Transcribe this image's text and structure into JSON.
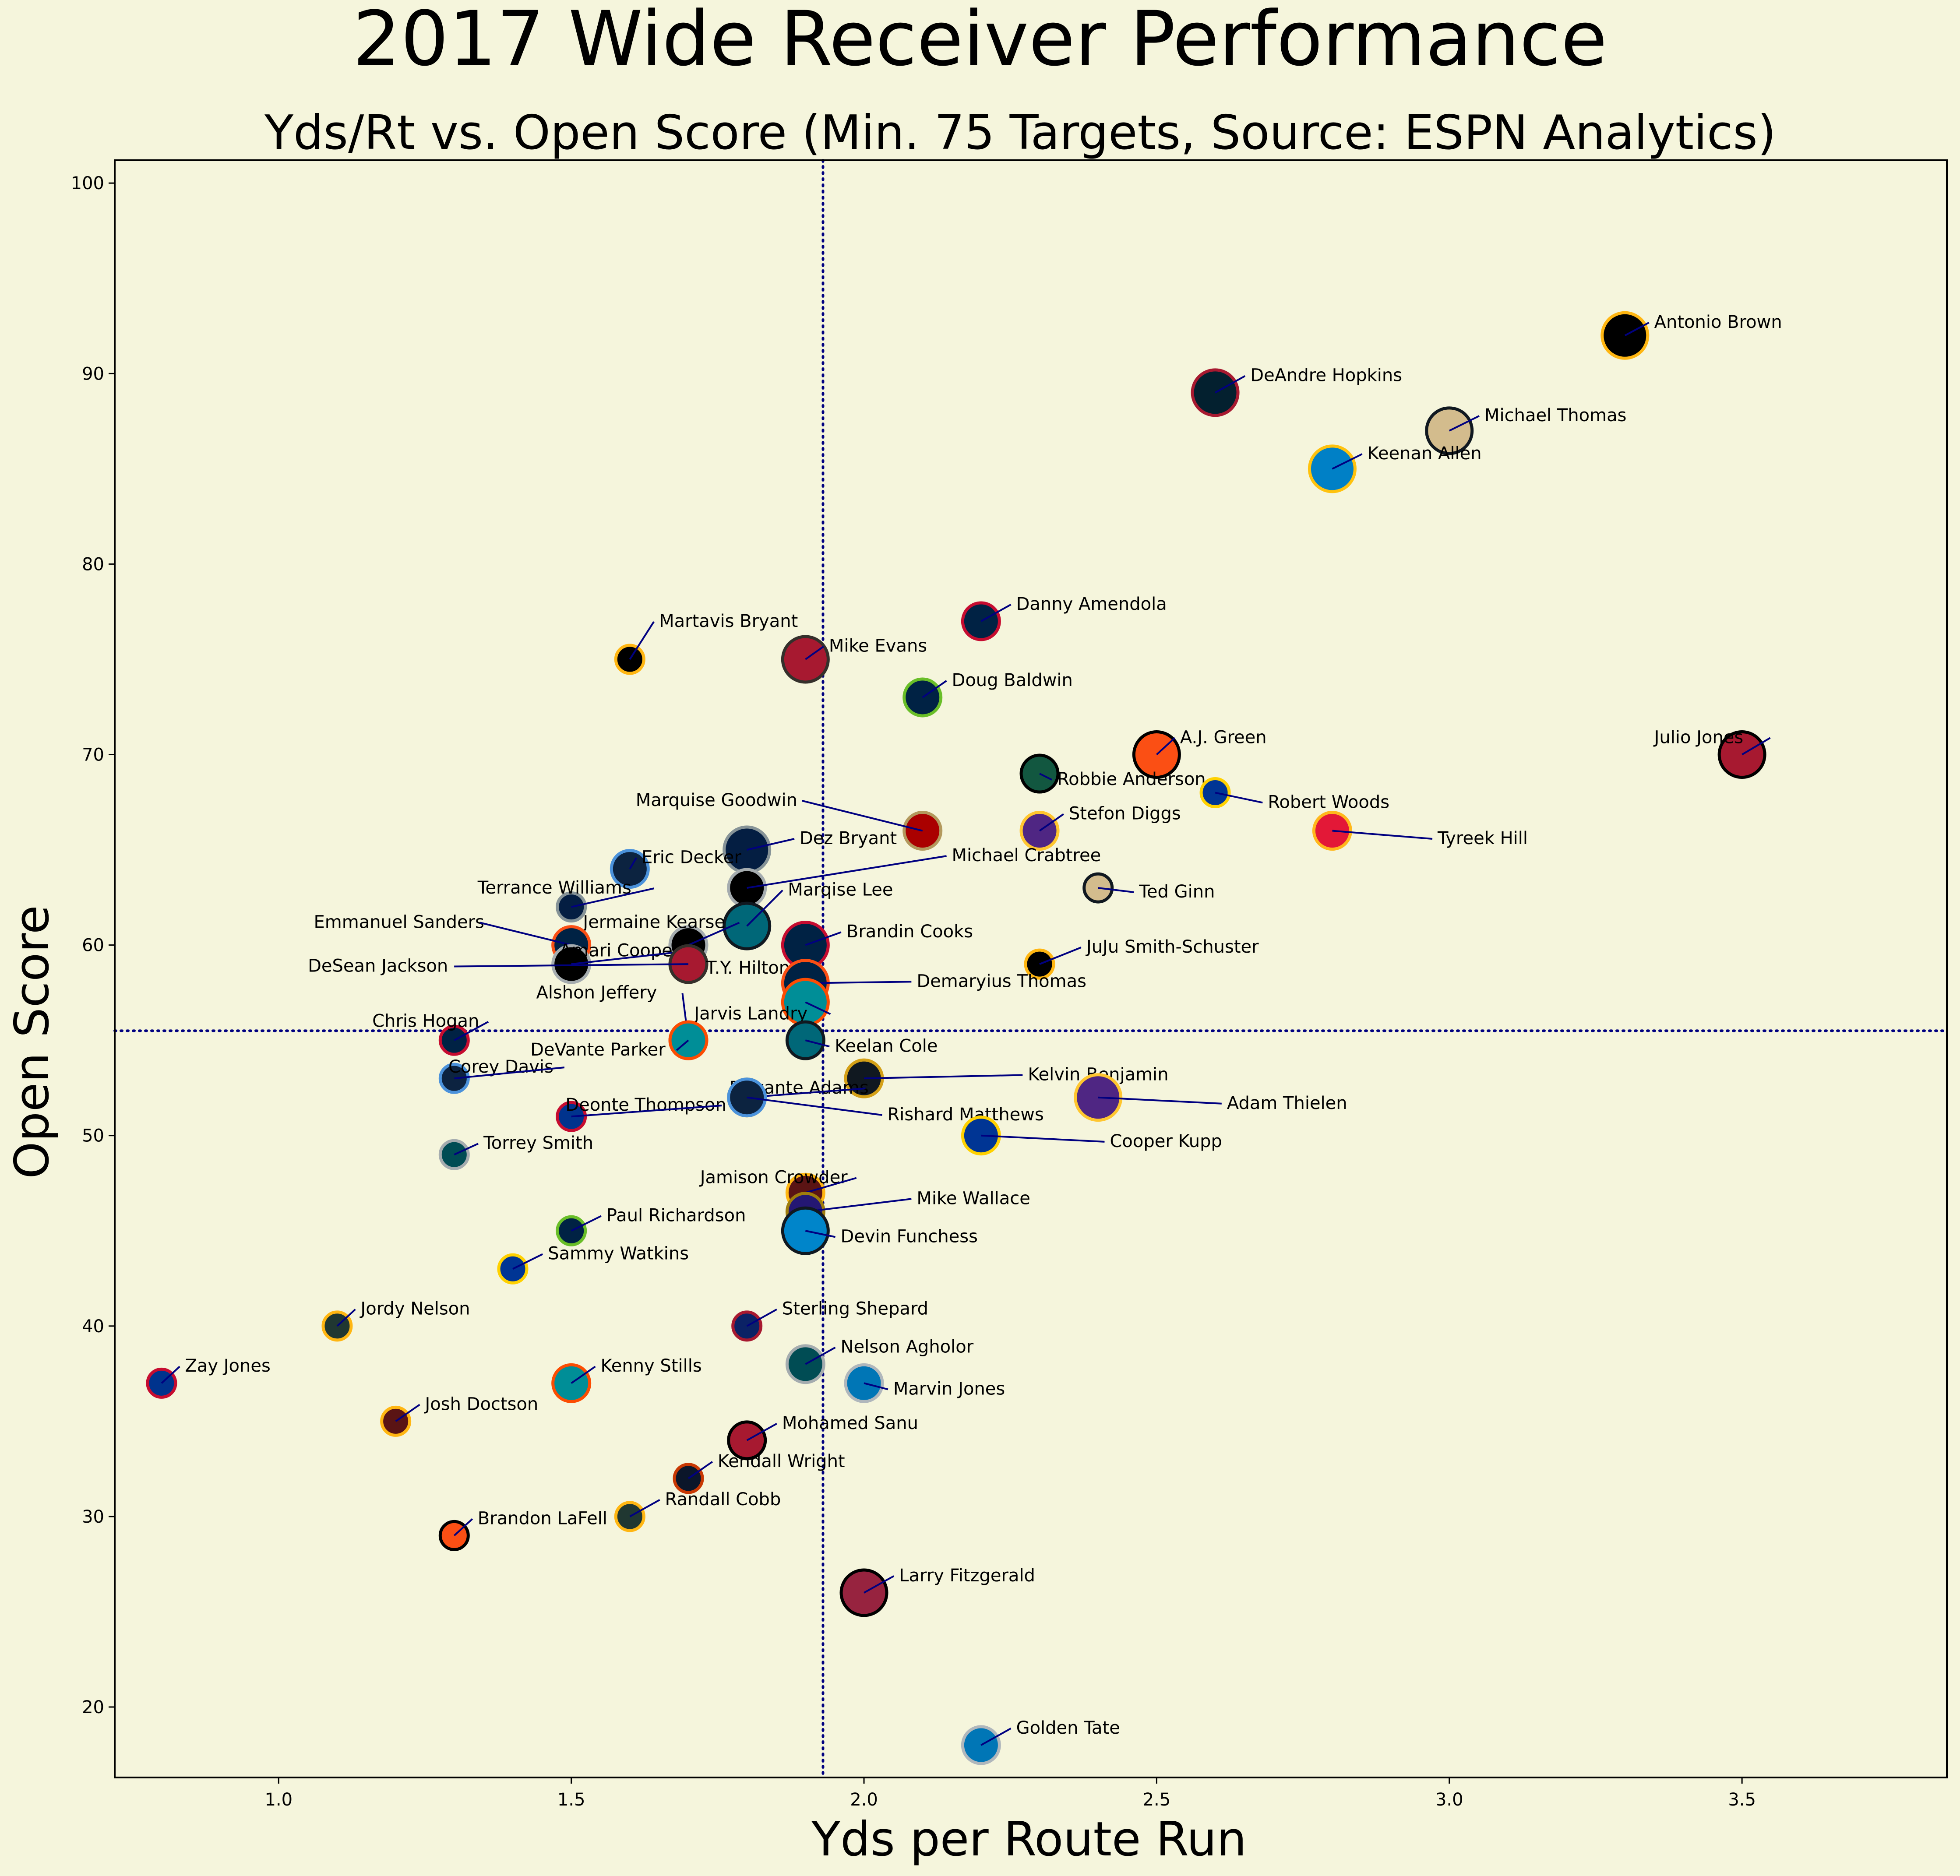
{
  "chart_data": {
    "type": "scatter",
    "title": "2017 Wide Receiver Performance",
    "subtitle": "Yds/Rt vs. Open Score (Min. 75 Targets, Source: ESPN Analytics)",
    "xlabel": "Yds per Route Run",
    "ylabel": "Open Score",
    "xlim": [
      0.72,
      3.85
    ],
    "ylim": [
      16.3,
      101.2
    ],
    "xticks": [
      "1.0",
      "1.5",
      "2.0",
      "2.5",
      "3.0",
      "3.5"
    ],
    "xtick_values": [
      1.0,
      1.5,
      2.0,
      2.5,
      3.0,
      3.5
    ],
    "yticks": [
      "20",
      "30",
      "40",
      "50",
      "60",
      "70",
      "80",
      "90",
      "100"
    ],
    "ytick_values": [
      20,
      30,
      40,
      50,
      60,
      70,
      80,
      90,
      100
    ],
    "ref_lines": {
      "x": 1.93,
      "y": 55.5
    },
    "points": [
      {
        "name": "Antonio Brown",
        "x": 3.3,
        "y": 92,
        "size": 3,
        "fill": "#000000",
        "edge": "#FFB612",
        "lx": 3.35,
        "ly": 92.4
      },
      {
        "name": "DeAndre Hopkins",
        "x": 2.6,
        "y": 89,
        "size": 3,
        "fill": "#03202F",
        "edge": "#A71930",
        "lx": 2.66,
        "ly": 89.6
      },
      {
        "name": "Michael Thomas",
        "x": 3.0,
        "y": 87,
        "size": 3,
        "fill": "#D3BC8D",
        "edge": "#101820",
        "lx": 3.06,
        "ly": 87.5
      },
      {
        "name": "Keenan Allen",
        "x": 2.8,
        "y": 85,
        "size": 3,
        "fill": "#0080C6",
        "edge": "#FFC20E",
        "lx": 2.86,
        "ly": 85.5
      },
      {
        "name": "Danny Amendola",
        "x": 2.2,
        "y": 77,
        "size": 2,
        "fill": "#002244",
        "edge": "#C60C30",
        "lx": 2.26,
        "ly": 77.6
      },
      {
        "name": "Martavis Bryant",
        "x": 1.6,
        "y": 75,
        "size": 1,
        "fill": "#000000",
        "edge": "#FFB612",
        "lx": 1.65,
        "ly": 76.7
      },
      {
        "name": "Mike Evans",
        "x": 1.9,
        "y": 75,
        "size": 3,
        "fill": "#A71930",
        "edge": "#34302B",
        "lx": 1.94,
        "ly": 75.4
      },
      {
        "name": "Doug Baldwin",
        "x": 2.1,
        "y": 73,
        "size": 2,
        "fill": "#002244",
        "edge": "#69BE28",
        "lx": 2.15,
        "ly": 73.6
      },
      {
        "name": "A.J. Green",
        "x": 2.5,
        "y": 70,
        "size": 3,
        "fill": "#FB4F14",
        "edge": "#000000",
        "lx": 2.54,
        "ly": 70.6
      },
      {
        "name": "Julio Jones",
        "x": 3.5,
        "y": 70,
        "size": 3,
        "fill": "#A71930",
        "edge": "#000000",
        "lx": 3.35,
        "ly": 70.6
      },
      {
        "name": "Robbie Anderson",
        "x": 2.3,
        "y": 69,
        "size": 2,
        "fill": "#125740",
        "edge": "#000000",
        "lx": 2.33,
        "ly": 68.4
      },
      {
        "name": "Robert Woods",
        "x": 2.6,
        "y": 68,
        "size": 1,
        "fill": "#003594",
        "edge": "#FFD100",
        "lx": 2.69,
        "ly": 67.2
      },
      {
        "name": "Marquise Goodwin",
        "x": 2.1,
        "y": 66,
        "size": 2,
        "fill": "#AA0000",
        "edge": "#B3995D",
        "lx": 1.61,
        "ly": 67.3
      },
      {
        "name": "Stefon Diggs",
        "x": 2.3,
        "y": 66,
        "size": 2,
        "fill": "#4F2683",
        "edge": "#FFC62F",
        "lx": 2.35,
        "ly": 66.6
      },
      {
        "name": "Tyreek Hill",
        "x": 2.8,
        "y": 66,
        "size": 2,
        "fill": "#E31837",
        "edge": "#FFB81C",
        "lx": 2.98,
        "ly": 65.3
      },
      {
        "name": "Dez Bryant",
        "x": 1.8,
        "y": 65,
        "size": 3,
        "fill": "#041E42",
        "edge": "#869397",
        "lx": 1.89,
        "ly": 65.3
      },
      {
        "name": "Eric Decker",
        "x": 1.6,
        "y": 64,
        "size": 2,
        "fill": "#0C2340",
        "edge": "#4B92DB",
        "lx": 1.62,
        "ly": 64.3
      },
      {
        "name": "Michael Crabtree",
        "x": 1.8,
        "y": 63,
        "size": 2,
        "fill": "#000000",
        "edge": "#A5ACAF",
        "lx": 2.15,
        "ly": 64.4
      },
      {
        "name": "Ted Ginn",
        "x": 2.4,
        "y": 63,
        "size": 1,
        "fill": "#D3BC8D",
        "edge": "#101820",
        "lx": 2.47,
        "ly": 62.5
      },
      {
        "name": "Terrance Williams",
        "x": 1.5,
        "y": 62,
        "size": 1,
        "fill": "#041E42",
        "edge": "#869397",
        "lx": 1.34,
        "ly": 62.7
      },
      {
        "name": "Marqise Lee",
        "x": 1.8,
        "y": 61,
        "size": 3,
        "fill": "#006778",
        "edge": "#101820",
        "lx": 1.87,
        "ly": 62.6
      },
      {
        "name": "Jermaine Kearse",
        "x": 1.7,
        "y": 60,
        "size": 2,
        "fill": "#000000",
        "edge": "#A5ACAF",
        "lx": 1.52,
        "ly": 60.9
      },
      {
        "name": "Emmanuel Sanders",
        "x": 1.5,
        "y": 60,
        "size": 2,
        "fill": "#002244",
        "edge": "#FB4F14",
        "lx": 1.06,
        "ly": 60.9
      },
      {
        "name": "Brandin Cooks",
        "x": 1.9,
        "y": 60,
        "size": 3,
        "fill": "#002244",
        "edge": "#C60C30",
        "lx": 1.97,
        "ly": 60.4
      },
      {
        "name": "Amari Cooper",
        "x": 1.5,
        "y": 59,
        "size": 2,
        "fill": "#000000",
        "edge": "#A5ACAF",
        "lx": 1.48,
        "ly": 59.4
      },
      {
        "name": "DeSean Jackson",
        "x": 1.7,
        "y": 59,
        "size": 2,
        "fill": "#A71930",
        "edge": "#34302B",
        "lx": 1.05,
        "ly": 58.6
      },
      {
        "name": "JuJu Smith-Schuster",
        "x": 2.3,
        "y": 59,
        "size": 1,
        "fill": "#000000",
        "edge": "#FFB612",
        "lx": 2.38,
        "ly": 59.6
      },
      {
        "name": "T.Y. Hilton",
        "x": 1.9,
        "y": 58,
        "size": 2,
        "fill": "#002C5F",
        "edge": "#A2AAAD",
        "lx": 1.73,
        "ly": 58.5
      },
      {
        "name": "Demaryius Thomas",
        "x": 1.9,
        "y": 58,
        "size": 3,
        "fill": "#002244",
        "edge": "#FB4F14",
        "lx": 2.09,
        "ly": 57.8
      },
      {
        "name": "Alshon Jeffery",
        "x": 1.7,
        "y": 55,
        "size": 2,
        "fill": "#004C54",
        "edge": "#A5ACAF",
        "lx": 1.44,
        "ly": 57.2
      },
      {
        "name": "Jarvis Landry",
        "x": 1.9,
        "y": 57,
        "size": 3,
        "fill": "#008E97",
        "edge": "#FC4C02",
        "lx": 1.71,
        "ly": 56.1
      },
      {
        "name": "Chris Hogan",
        "x": 1.3,
        "y": 55,
        "size": 1,
        "fill": "#002244",
        "edge": "#C60C30",
        "lx": 1.16,
        "ly": 55.7
      },
      {
        "name": "Keelan Cole",
        "x": 1.9,
        "y": 55,
        "size": 2,
        "fill": "#006778",
        "edge": "#101820",
        "lx": 1.95,
        "ly": 54.4
      },
      {
        "name": "DeVante Parker",
        "x": 1.7,
        "y": 55,
        "size": 2,
        "fill": "#008E97",
        "edge": "#FC4C02",
        "lx": 1.43,
        "ly": 54.2
      },
      {
        "name": "Corey Davis",
        "x": 1.3,
        "y": 53,
        "size": 1,
        "fill": "#0C2340",
        "edge": "#4B92DB",
        "lx": 1.29,
        "ly": 53.3
      },
      {
        "name": "Kelvin Benjamin",
        "x": 2.0,
        "y": 53,
        "size": 2,
        "fill": "#101820",
        "edge": "#D4A017",
        "lx": 2.28,
        "ly": 52.9
      },
      {
        "name": "Davante Adams",
        "x": 1.8,
        "y": 52,
        "size": 2,
        "fill": "#203731",
        "edge": "#FFB612",
        "lx": 1.77,
        "ly": 52.2
      },
      {
        "name": "Rishard Matthews",
        "x": 1.8,
        "y": 52,
        "size": 2,
        "fill": "#0C2340",
        "edge": "#4B92DB",
        "lx": 2.04,
        "ly": 50.8
      },
      {
        "name": "Adam Thielen",
        "x": 2.4,
        "y": 52,
        "size": 3,
        "fill": "#4F2683",
        "edge": "#FFC62F",
        "lx": 2.62,
        "ly": 51.4
      },
      {
        "name": "Deonte Thompson",
        "x": 1.5,
        "y": 51,
        "size": 1,
        "fill": "#00338D",
        "edge": "#C60C30",
        "lx": 1.49,
        "ly": 51.3
      },
      {
        "name": "Cooper Kupp",
        "x": 2.2,
        "y": 50,
        "size": 2,
        "fill": "#003594",
        "edge": "#FFD100",
        "lx": 2.42,
        "ly": 49.4
      },
      {
        "name": "Torrey Smith",
        "x": 1.3,
        "y": 49,
        "size": 1,
        "fill": "#004C54",
        "edge": "#A5ACAF",
        "lx": 1.35,
        "ly": 49.3
      },
      {
        "name": "Jamison Crowder",
        "x": 1.9,
        "y": 47,
        "size": 2,
        "fill": "#5A1414",
        "edge": "#FFB612",
        "lx": 1.72,
        "ly": 47.5
      },
      {
        "name": "Mike Wallace",
        "x": 1.9,
        "y": 46,
        "size": 2,
        "fill": "#241773",
        "edge": "#9E7C0C",
        "lx": 2.09,
        "ly": 46.4
      },
      {
        "name": "Devin Funchess",
        "x": 1.9,
        "y": 45,
        "size": 3,
        "fill": "#0085CA",
        "edge": "#101820",
        "lx": 1.96,
        "ly": 44.4
      },
      {
        "name": "Paul Richardson",
        "x": 1.5,
        "y": 45,
        "size": 1,
        "fill": "#002244",
        "edge": "#69BE28",
        "lx": 1.56,
        "ly": 45.5
      },
      {
        "name": "Sammy Watkins",
        "x": 1.4,
        "y": 43,
        "size": 1,
        "fill": "#003594",
        "edge": "#FFD100",
        "lx": 1.46,
        "ly": 43.5
      },
      {
        "name": "Jordy Nelson",
        "x": 1.1,
        "y": 40,
        "size": 1,
        "fill": "#203731",
        "edge": "#FFB612",
        "lx": 1.14,
        "ly": 40.6
      },
      {
        "name": "Sterling Shepard",
        "x": 1.8,
        "y": 40,
        "size": 1,
        "fill": "#0B2265",
        "edge": "#A71930",
        "lx": 1.86,
        "ly": 40.6
      },
      {
        "name": "Nelson Agholor",
        "x": 1.9,
        "y": 38,
        "size": 2,
        "fill": "#004C54",
        "edge": "#A5ACAF",
        "lx": 1.96,
        "ly": 38.6
      },
      {
        "name": "Zay Jones",
        "x": 0.8,
        "y": 37,
        "size": 1,
        "fill": "#00338D",
        "edge": "#C60C30",
        "lx": 0.84,
        "ly": 37.6
      },
      {
        "name": "Kenny Stills",
        "x": 1.5,
        "y": 37,
        "size": 2,
        "fill": "#008E97",
        "edge": "#FC4C02",
        "lx": 1.55,
        "ly": 37.6
      },
      {
        "name": "Marvin Jones",
        "x": 2.0,
        "y": 37,
        "size": 2,
        "fill": "#0076B6",
        "edge": "#B0B7BC",
        "lx": 2.05,
        "ly": 36.4
      },
      {
        "name": "Josh Doctson",
        "x": 1.2,
        "y": 35,
        "size": 1,
        "fill": "#5A1414",
        "edge": "#FFB612",
        "lx": 1.25,
        "ly": 35.6
      },
      {
        "name": "Mohamed Sanu",
        "x": 1.8,
        "y": 34,
        "size": 2,
        "fill": "#A71930",
        "edge": "#000000",
        "lx": 1.86,
        "ly": 34.6
      },
      {
        "name": "Kendall Wright",
        "x": 1.7,
        "y": 32,
        "size": 1,
        "fill": "#0B162A",
        "edge": "#C83803",
        "lx": 1.75,
        "ly": 32.6
      },
      {
        "name": "Randall Cobb",
        "x": 1.6,
        "y": 30,
        "size": 1,
        "fill": "#203731",
        "edge": "#FFB612",
        "lx": 1.66,
        "ly": 30.6
      },
      {
        "name": "Brandon LaFell",
        "x": 1.3,
        "y": 29,
        "size": 1,
        "fill": "#FB4F14",
        "edge": "#000000",
        "lx": 1.34,
        "ly": 29.6
      },
      {
        "name": "Larry Fitzgerald",
        "x": 2.0,
        "y": 26,
        "size": 3,
        "fill": "#97233F",
        "edge": "#000000",
        "lx": 2.06,
        "ly": 26.6
      },
      {
        "name": "Golden Tate",
        "x": 2.2,
        "y": 18,
        "size": 2,
        "fill": "#0076B6",
        "edge": "#B0B7BC",
        "lx": 2.26,
        "ly": 18.6
      }
    ],
    "colors": {
      "background": "#F5F5DC",
      "reference_line": "#000080",
      "connector": "#000080",
      "text": "#000000"
    },
    "grid": false,
    "legend": "none"
  }
}
